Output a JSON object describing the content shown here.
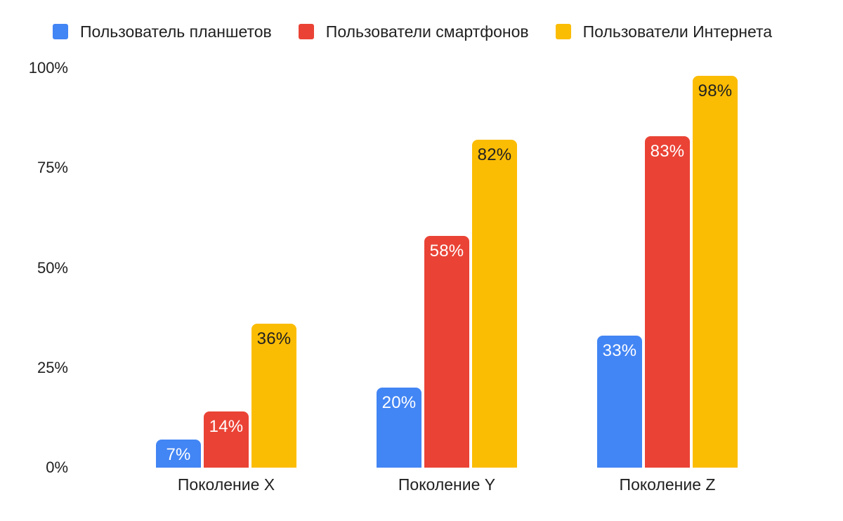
{
  "colors": {
    "blue": "#4285F4",
    "red": "#EA4335",
    "yellow": "#FBBC04",
    "axis_text": "#212121",
    "background": "#FFFFFF"
  },
  "chart_data": {
    "type": "bar",
    "title": "",
    "categories": [
      "Поколение X",
      "Поколение Y",
      "Поколение Z"
    ],
    "series": [
      {
        "name": "Пользователь планшетов",
        "color": "#4285F4",
        "label_color": "#FFFFFF",
        "values": [
          7,
          20,
          33
        ]
      },
      {
        "name": "Пользователи смартфонов",
        "color": "#EA4335",
        "label_color": "#FFFFFF",
        "values": [
          14,
          58,
          83
        ]
      },
      {
        "name": "Пользователи Интернета",
        "color": "#FBBC04",
        "label_color": "#212121",
        "values": [
          36,
          82,
          98
        ]
      }
    ],
    "value_suffix": "%",
    "data_labels": [
      "7%",
      "20%",
      "33%",
      "14%",
      "58%",
      "83%",
      "36%",
      "82%",
      "98%"
    ],
    "yticks": [
      0,
      25,
      50,
      75,
      100
    ],
    "ytick_labels": [
      "0%",
      "25%",
      "50%",
      "75%",
      "100%"
    ],
    "ylim": [
      0,
      100
    ],
    "grid": false,
    "legend_position": "top"
  }
}
